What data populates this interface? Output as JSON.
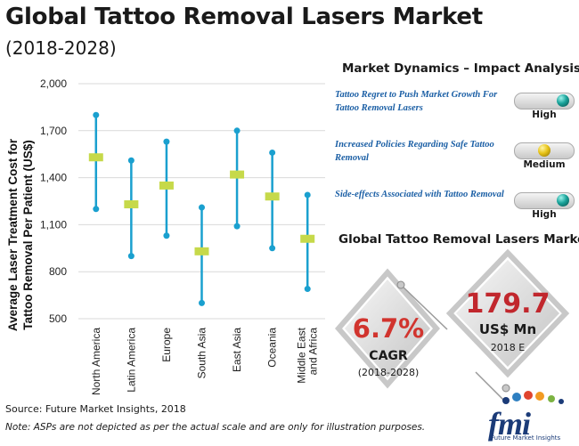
{
  "header": {
    "title": "Global Tattoo Removal Lasers Market",
    "subtitle": "(2018-2028)"
  },
  "chart_data": {
    "type": "range",
    "ylabel_line1": "Average Laser Treatment Cost for",
    "ylabel_line2": "Tattoo Removal Per Patient (US$)",
    "ylim": [
      500,
      2000
    ],
    "yticks": [
      "2,000",
      "1,700",
      "1,400",
      "1,100",
      "800",
      "500"
    ],
    "ytick_values": [
      2000,
      1700,
      1400,
      1100,
      800,
      500
    ],
    "grid": true,
    "categories": [
      "North America",
      "Latin America",
      "Europe",
      "South Asia",
      "East Asia",
      "Oceania",
      "Middle East and Africa"
    ],
    "category_lines": [
      [
        "North America"
      ],
      [
        "Latin America"
      ],
      [
        "Europe"
      ],
      [
        "South Asia"
      ],
      [
        "East Asia"
      ],
      [
        "Oceania"
      ],
      [
        "Middle East",
        "and Africa"
      ]
    ],
    "series": [
      {
        "name": "high",
        "values": [
          1800,
          1510,
          1630,
          1210,
          1700,
          1560,
          1290
        ]
      },
      {
        "name": "average",
        "values": [
          1530,
          1230,
          1350,
          930,
          1420,
          1280,
          1010
        ]
      },
      {
        "name": "low",
        "values": [
          1200,
          900,
          1030,
          600,
          1090,
          950,
          690
        ]
      }
    ],
    "colors": {
      "range": "#1aa0cf",
      "average": "#c6d94a",
      "grid": "#d9d9d9"
    }
  },
  "market_dynamics": {
    "title": "Market Dynamics – Impact Analysis",
    "items": [
      {
        "text": "Tattoo Regret to Push Market Growth For Tattoo Removal Lasers",
        "level": "High",
        "indicator": "teal-ball"
      },
      {
        "text": "Increased Policies Regarding Safe Tattoo Removal",
        "level": "Medium",
        "indicator": "gold-ball"
      },
      {
        "text": "Side-effects Associated with Tattoo Removal",
        "level": "High",
        "indicator": "teal-ball"
      }
    ]
  },
  "global_market": {
    "title": "Global Tattoo Removal Lasers Market",
    "cagr_value": "6.7%",
    "cagr_label": "CAGR",
    "cagr_years": "(2018-2028)",
    "market_value": "179.7",
    "market_unit": "US$ Mn",
    "market_year": "2018 E",
    "colors": {
      "accent": "#c1272d"
    }
  },
  "footer": {
    "source": "Source: Future Market Insights, 2018",
    "note": "Note: ASPs are not depicted as per the actual scale and are only for illustration purposes."
  },
  "logo": {
    "text": "fmi",
    "subtext": "Future Market Insights"
  }
}
